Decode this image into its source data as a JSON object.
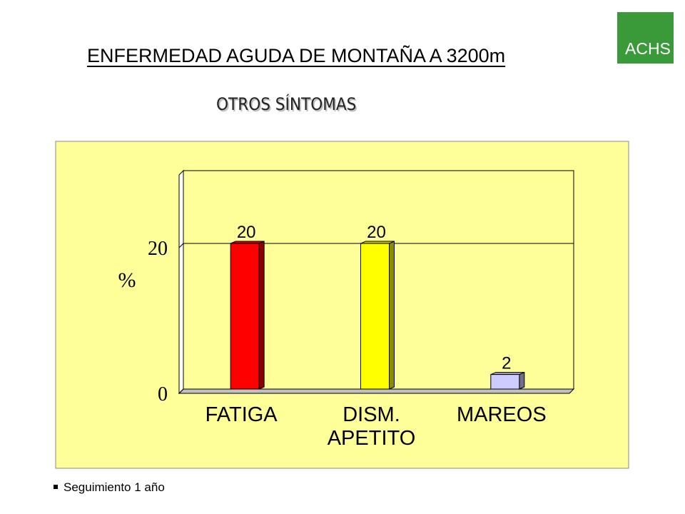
{
  "logo": {
    "text": "ACHS",
    "color": "#3a9a3a"
  },
  "title": "ENFERMEDAD AGUDA DE MONTAÑA A 3200m",
  "subtitle": "OTROS SÍNTOMAS",
  "footnote": "Seguimiento 1 año",
  "chart_data": {
    "type": "bar",
    "categories": [
      [
        "FATIGA"
      ],
      [
        "DISM.",
        "APETITO"
      ],
      [
        "MAREOS"
      ]
    ],
    "values": [
      20,
      20,
      2
    ],
    "data_labels": [
      "20",
      "20",
      "2"
    ],
    "bar_colors": [
      "#ff0000",
      "#ffff00",
      "#ccccff"
    ],
    "ylabel": "%",
    "yticks": [
      0,
      20
    ],
    "ylim": [
      0,
      30
    ],
    "grid": true,
    "background_color": "#ffff99"
  }
}
